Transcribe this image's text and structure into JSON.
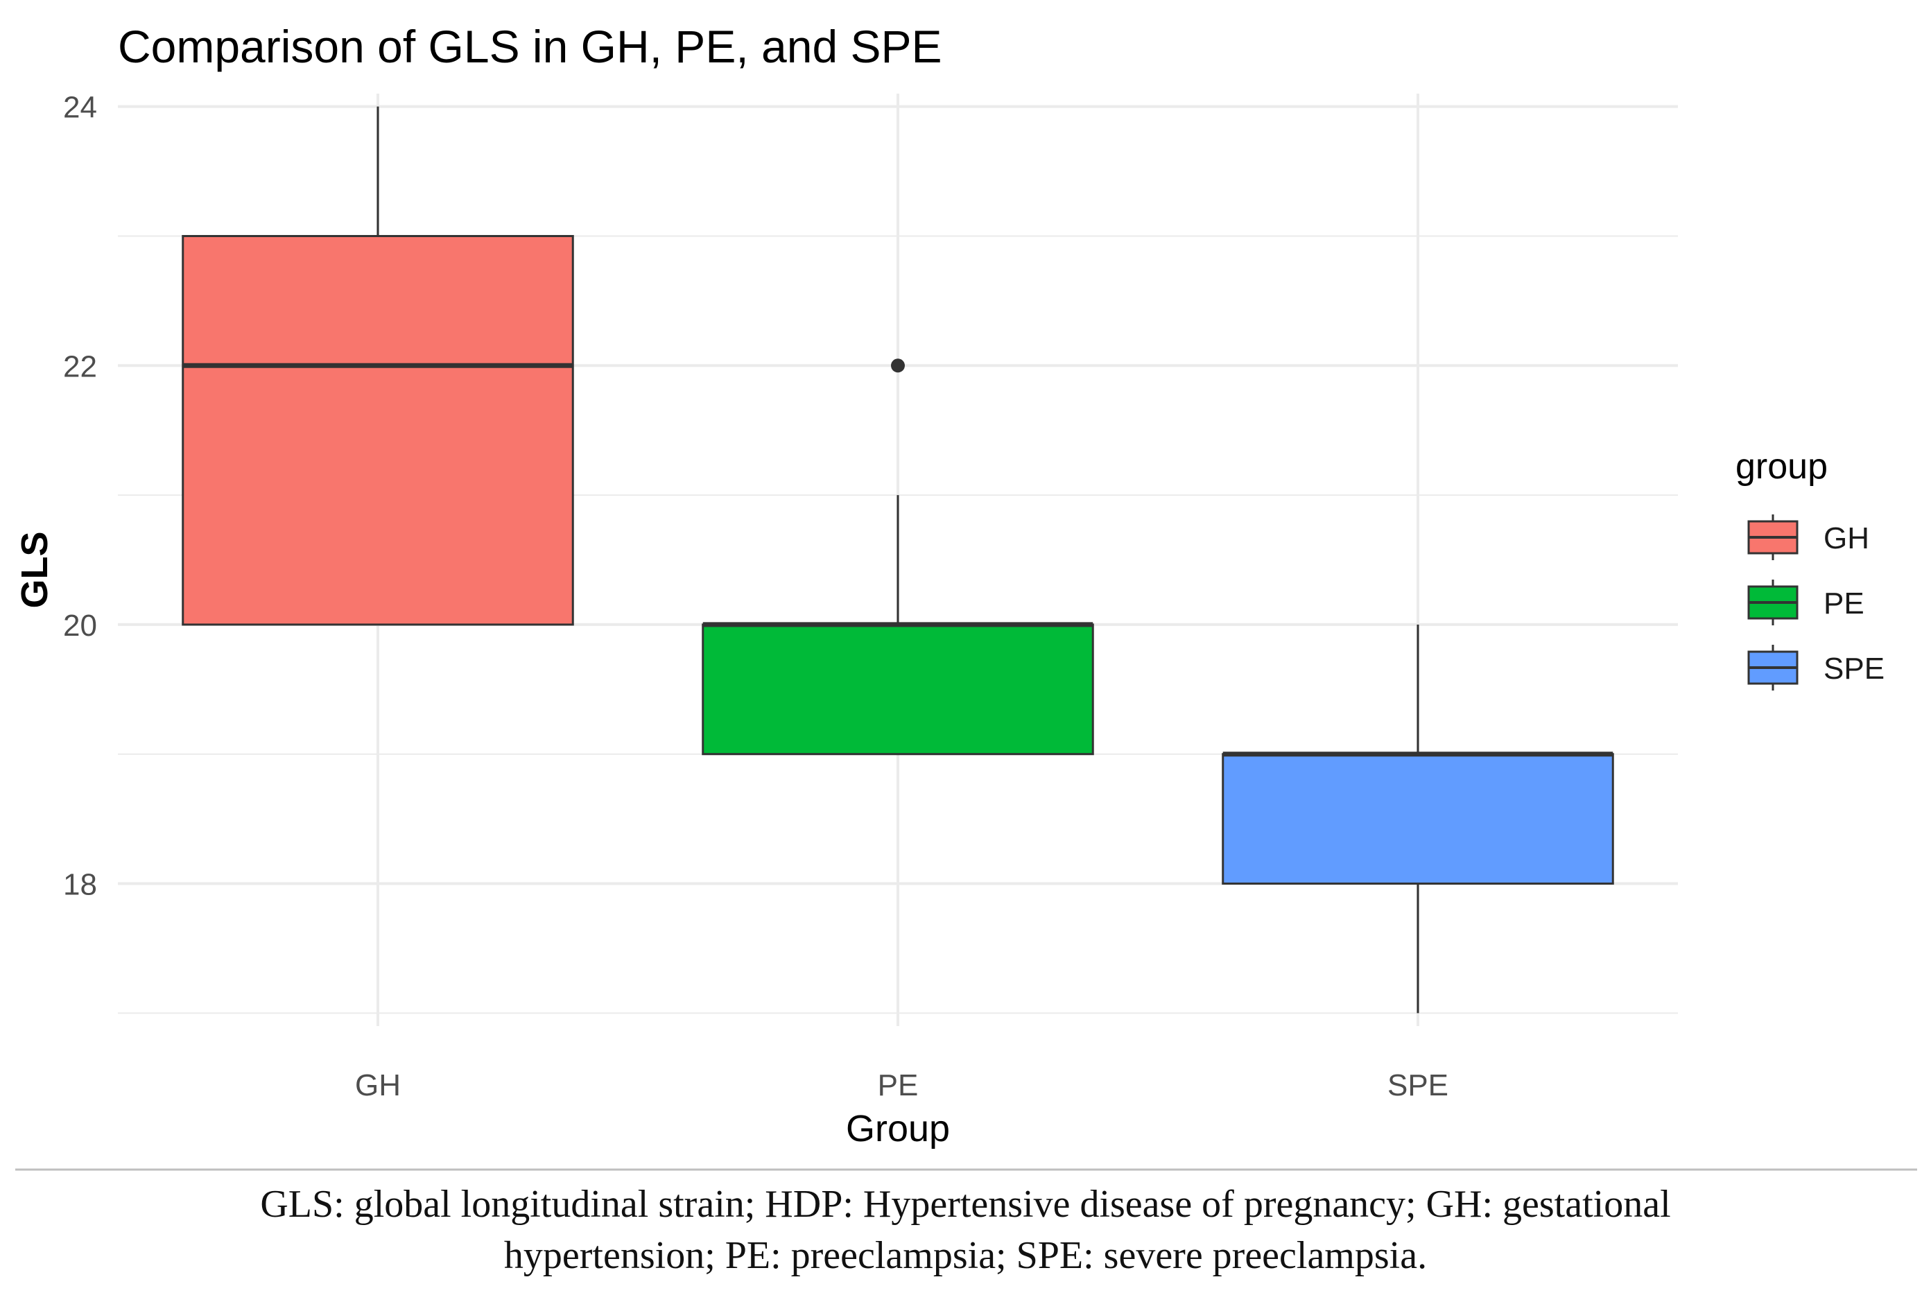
{
  "chart_data": {
    "type": "boxplot",
    "title": "Comparison of GLS in GH, PE, and SPE",
    "xlabel": "Group",
    "ylabel": "GLS",
    "ylim": [
      16.9,
      24.1
    ],
    "yticks": [
      18,
      20,
      22,
      24
    ],
    "grid": true,
    "legend": {
      "title": "group",
      "position": "right",
      "entries": [
        "GH",
        "PE",
        "SPE"
      ]
    },
    "categories": [
      "GH",
      "PE",
      "SPE"
    ],
    "boxes": [
      {
        "group": "GH",
        "color": "#F8766D",
        "lower_whisker": 20,
        "q1": 20,
        "median": 22,
        "q3": 23,
        "upper_whisker": 24,
        "outliers": []
      },
      {
        "group": "PE",
        "color": "#00BA38",
        "lower_whisker": 19,
        "q1": 19,
        "median": 20,
        "q3": 20,
        "upper_whisker": 21,
        "outliers": [
          22
        ]
      },
      {
        "group": "SPE",
        "color": "#619CFF",
        "lower_whisker": 17,
        "q1": 18,
        "median": 19,
        "q3": 19,
        "upper_whisker": 20,
        "outliers": []
      }
    ]
  },
  "caption": {
    "line1": "GLS: global longitudinal strain; HDP: Hypertensive disease of pregnancy; GH: gestational",
    "line2": "hypertension; PE: preeclampsia; SPE: severe preeclampsia."
  },
  "colors": {
    "grid": "#EBEBEB",
    "box_border": "#333333",
    "axis_text": "#4D4D4D",
    "separator": "#BFBFBF"
  }
}
